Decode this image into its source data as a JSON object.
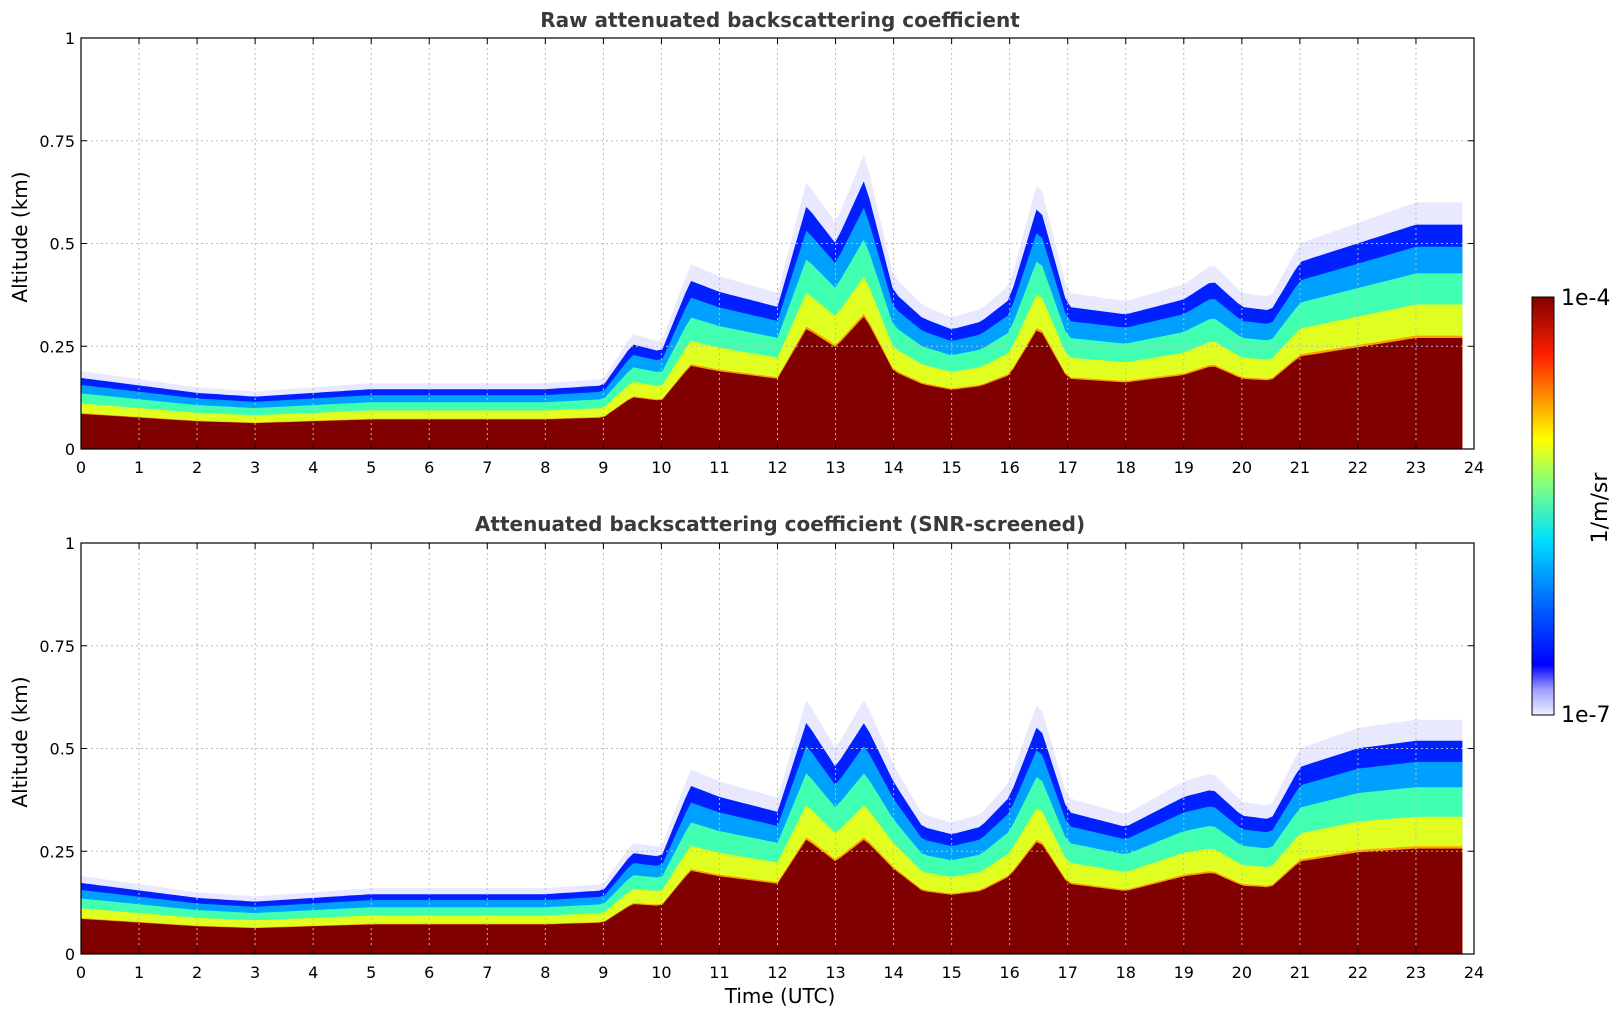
{
  "chart_data": [
    {
      "type": "heatmap",
      "title": "Raw attenuated backscattering coefficient",
      "xlabel": "",
      "ylabel": "Altitude (km)",
      "xlim": [
        0,
        24
      ],
      "ylim": [
        0,
        1
      ],
      "x_ticks": [
        "0",
        "1",
        "2",
        "3",
        "4",
        "5",
        "6",
        "7",
        "8",
        "9",
        "10",
        "11",
        "12",
        "13",
        "14",
        "15",
        "16",
        "17",
        "18",
        "19",
        "20",
        "21",
        "22",
        "23",
        "24"
      ],
      "y_ticks": [
        "0",
        "0.25",
        "0.5",
        "0.75",
        "1"
      ],
      "grid": true,
      "colorscale": "jet",
      "layer_top_km": {
        "time_utc": [
          0,
          1,
          2,
          3,
          4,
          5,
          6,
          7,
          8,
          9,
          9.5,
          10,
          10.5,
          11,
          12,
          12.5,
          13,
          13.5,
          14,
          14.5,
          15,
          15.5,
          16,
          16.5,
          17,
          18,
          19,
          19.5,
          20,
          20.5,
          21,
          22,
          23,
          23.8
        ],
        "altitude_km": [
          0.19,
          0.17,
          0.15,
          0.14,
          0.15,
          0.16,
          0.16,
          0.16,
          0.16,
          0.17,
          0.28,
          0.26,
          0.45,
          0.42,
          0.38,
          0.65,
          0.55,
          0.72,
          0.42,
          0.35,
          0.32,
          0.34,
          0.4,
          0.66,
          0.38,
          0.36,
          0.4,
          0.45,
          0.38,
          0.37,
          0.5,
          0.55,
          0.6,
          0.6
        ]
      }
    },
    {
      "type": "heatmap",
      "title": "Attenuated backscattering coefficient (SNR-screened)",
      "xlabel": "Time (UTC)",
      "ylabel": "Altitude (km)",
      "xlim": [
        0,
        24
      ],
      "ylim": [
        0,
        1
      ],
      "x_ticks": [
        "0",
        "1",
        "2",
        "3",
        "4",
        "5",
        "6",
        "7",
        "8",
        "9",
        "10",
        "11",
        "12",
        "13",
        "14",
        "15",
        "16",
        "17",
        "18",
        "19",
        "20",
        "21",
        "22",
        "23",
        "24"
      ],
      "y_ticks": [
        "0",
        "0.25",
        "0.5",
        "0.75",
        "1"
      ],
      "grid": true,
      "colorscale": "jet",
      "layer_top_km": {
        "time_utc": [
          0,
          1,
          2,
          3,
          4,
          5,
          6,
          7,
          8,
          9,
          9.5,
          10,
          10.5,
          11,
          12,
          12.5,
          13,
          13.5,
          14,
          14.5,
          15,
          15.5,
          16,
          16.5,
          17,
          18,
          19,
          19.5,
          20,
          20.5,
          21,
          22,
          23,
          23.8
        ],
        "altitude_km": [
          0.19,
          0.17,
          0.15,
          0.14,
          0.15,
          0.16,
          0.16,
          0.16,
          0.16,
          0.17,
          0.27,
          0.26,
          0.45,
          0.42,
          0.38,
          0.62,
          0.5,
          0.62,
          0.46,
          0.34,
          0.32,
          0.34,
          0.42,
          0.62,
          0.38,
          0.34,
          0.42,
          0.44,
          0.37,
          0.36,
          0.5,
          0.55,
          0.57,
          0.57
        ]
      }
    }
  ],
  "colorbar": {
    "label": "1/m/sr",
    "max_label": "1e-4",
    "min_label": "1e-7",
    "colors": [
      "#800000",
      "#ff2000",
      "#ffa000",
      "#e0ff20",
      "#40ffb0",
      "#00a0ff",
      "#0020ff",
      "#e8e8ff"
    ]
  }
}
